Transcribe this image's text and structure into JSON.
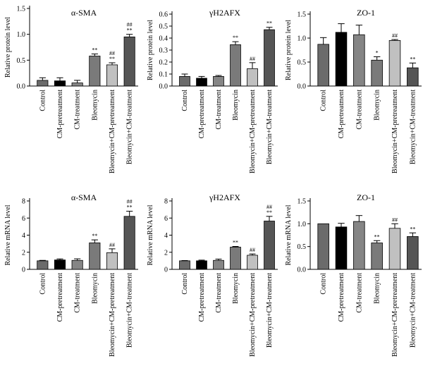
{
  "chart_data": [
    {
      "type": "bar",
      "title": "α-SMA",
      "ylabel": "Relative protein level",
      "ylim": [
        0,
        1.5
      ],
      "yticks": [
        "0.0",
        "0.5",
        "1.0",
        "1.5"
      ],
      "categories": [
        "Control",
        "CM-pretreatment",
        "CM-treatment",
        "Bleomycin",
        "Bleomycin+CM-pretreatment",
        "Bleomycin+CM-treatment"
      ],
      "values": [
        0.11,
        0.1,
        0.06,
        0.58,
        0.41,
        0.95
      ],
      "errors": [
        0.05,
        0.06,
        0.05,
        0.04,
        0.04,
        0.05
      ],
      "annotations": [
        "",
        "",
        "",
        "**",
        "##\n**",
        "##\n**"
      ],
      "colors": [
        "#6b6b6b",
        "#000000",
        "#858585",
        "#7a7a7a",
        "#c0c0c0",
        "#555555"
      ]
    },
    {
      "type": "bar",
      "title": "γH2AFX",
      "ylabel": "Relative protein level",
      "ylim": [
        0,
        0.6
      ],
      "yticks": [
        "0.0",
        "0.1",
        "0.2",
        "0.3",
        "0.4",
        "0.5",
        "0.6"
      ],
      "categories": [
        "Control",
        "CM-pretreatment",
        "CM-treatment",
        "Bleomycin",
        "Bleomycin+CM-pretreatment",
        "Bleomycin+CM-treatment"
      ],
      "values": [
        0.08,
        0.065,
        0.08,
        0.345,
        0.145,
        0.47
      ],
      "errors": [
        0.02,
        0.015,
        0.008,
        0.025,
        0.05,
        0.02
      ],
      "annotations": [
        "",
        "",
        "",
        "**",
        "##",
        "**"
      ],
      "colors": [
        "#6b6b6b",
        "#000000",
        "#858585",
        "#7a7a7a",
        "#c0c0c0",
        "#555555"
      ]
    },
    {
      "type": "bar",
      "title": "ZO-1",
      "ylabel": "Relative protein level",
      "ylim": [
        0,
        1.5
      ],
      "yticks": [
        "0.0",
        "0.5",
        "1.0",
        "1.5"
      ],
      "categories": [
        "Control",
        "CM-pretreatment",
        "CM-treatment",
        "Bleomycin",
        "Bleomycin+CM-pretreatment",
        "Bleomycin+CM-treatment"
      ],
      "values": [
        0.87,
        1.12,
        1.07,
        0.54,
        0.95,
        0.38
      ],
      "errors": [
        0.14,
        0.18,
        0.2,
        0.07,
        0.02,
        0.1
      ],
      "annotations": [
        "",
        "",
        "",
        "*",
        "##",
        "**"
      ],
      "colors": [
        "#6b6b6b",
        "#000000",
        "#858585",
        "#7a7a7a",
        "#c0c0c0",
        "#555555"
      ]
    },
    {
      "type": "bar",
      "title": "α-SMA",
      "ylabel": "Relative mRNA level",
      "ylim": [
        0,
        8
      ],
      "yticks": [
        "0",
        "2",
        "4",
        "6",
        "8"
      ],
      "categories": [
        "Control",
        "CM-pretreatment",
        "CM-treatment",
        "Bleomycin",
        "Bleomycin+CM-pretreatment",
        "Bleomycin+CM-treatment"
      ],
      "values": [
        1.0,
        1.1,
        1.05,
        3.1,
        1.95,
        6.2
      ],
      "errors": [
        0.05,
        0.12,
        0.18,
        0.35,
        0.45,
        0.6
      ],
      "annotations": [
        "",
        "",
        "",
        "**",
        "##",
        "##\n**"
      ],
      "colors": [
        "#6b6b6b",
        "#000000",
        "#858585",
        "#7a7a7a",
        "#c0c0c0",
        "#555555"
      ]
    },
    {
      "type": "bar",
      "title": "γH2AFX",
      "ylabel": "Relative mRNA level",
      "ylim": [
        0,
        8
      ],
      "yticks": [
        "0",
        "2",
        "4",
        "6",
        "8"
      ],
      "categories": [
        "Control",
        "CM-pretreatment",
        "CM-treatment",
        "Bleomycin",
        "Bleomycin+CM-pretreatment",
        "Bleomycin+CM-treatment"
      ],
      "values": [
        1.0,
        1.0,
        1.05,
        2.6,
        1.65,
        5.65
      ],
      "errors": [
        0.03,
        0.08,
        0.15,
        0.08,
        0.15,
        0.55
      ],
      "annotations": [
        "",
        "",
        "",
        "**",
        "##",
        "##\n**"
      ],
      "colors": [
        "#6b6b6b",
        "#000000",
        "#858585",
        "#7a7a7a",
        "#c0c0c0",
        "#555555"
      ]
    },
    {
      "type": "bar",
      "title": "ZO-1",
      "ylabel": "Relative mRNA level",
      "ylim": [
        0,
        1.5
      ],
      "yticks": [
        "0.0",
        "0.5",
        "1.0",
        "1.5"
      ],
      "categories": [
        "Control",
        "CM-pretreatment",
        "CM-treatment",
        "Bleomycin",
        "Bleomycin+CM-pretreatment",
        "Bleomycin+CM-treatment"
      ],
      "values": [
        1.0,
        0.93,
        1.05,
        0.58,
        0.9,
        0.72
      ],
      "errors": [
        0.0,
        0.08,
        0.13,
        0.05,
        0.1,
        0.08
      ],
      "annotations": [
        "",
        "",
        "",
        "**",
        "##",
        "**"
      ],
      "colors": [
        "#6b6b6b",
        "#000000",
        "#858585",
        "#7a7a7a",
        "#c0c0c0",
        "#555555"
      ]
    }
  ]
}
